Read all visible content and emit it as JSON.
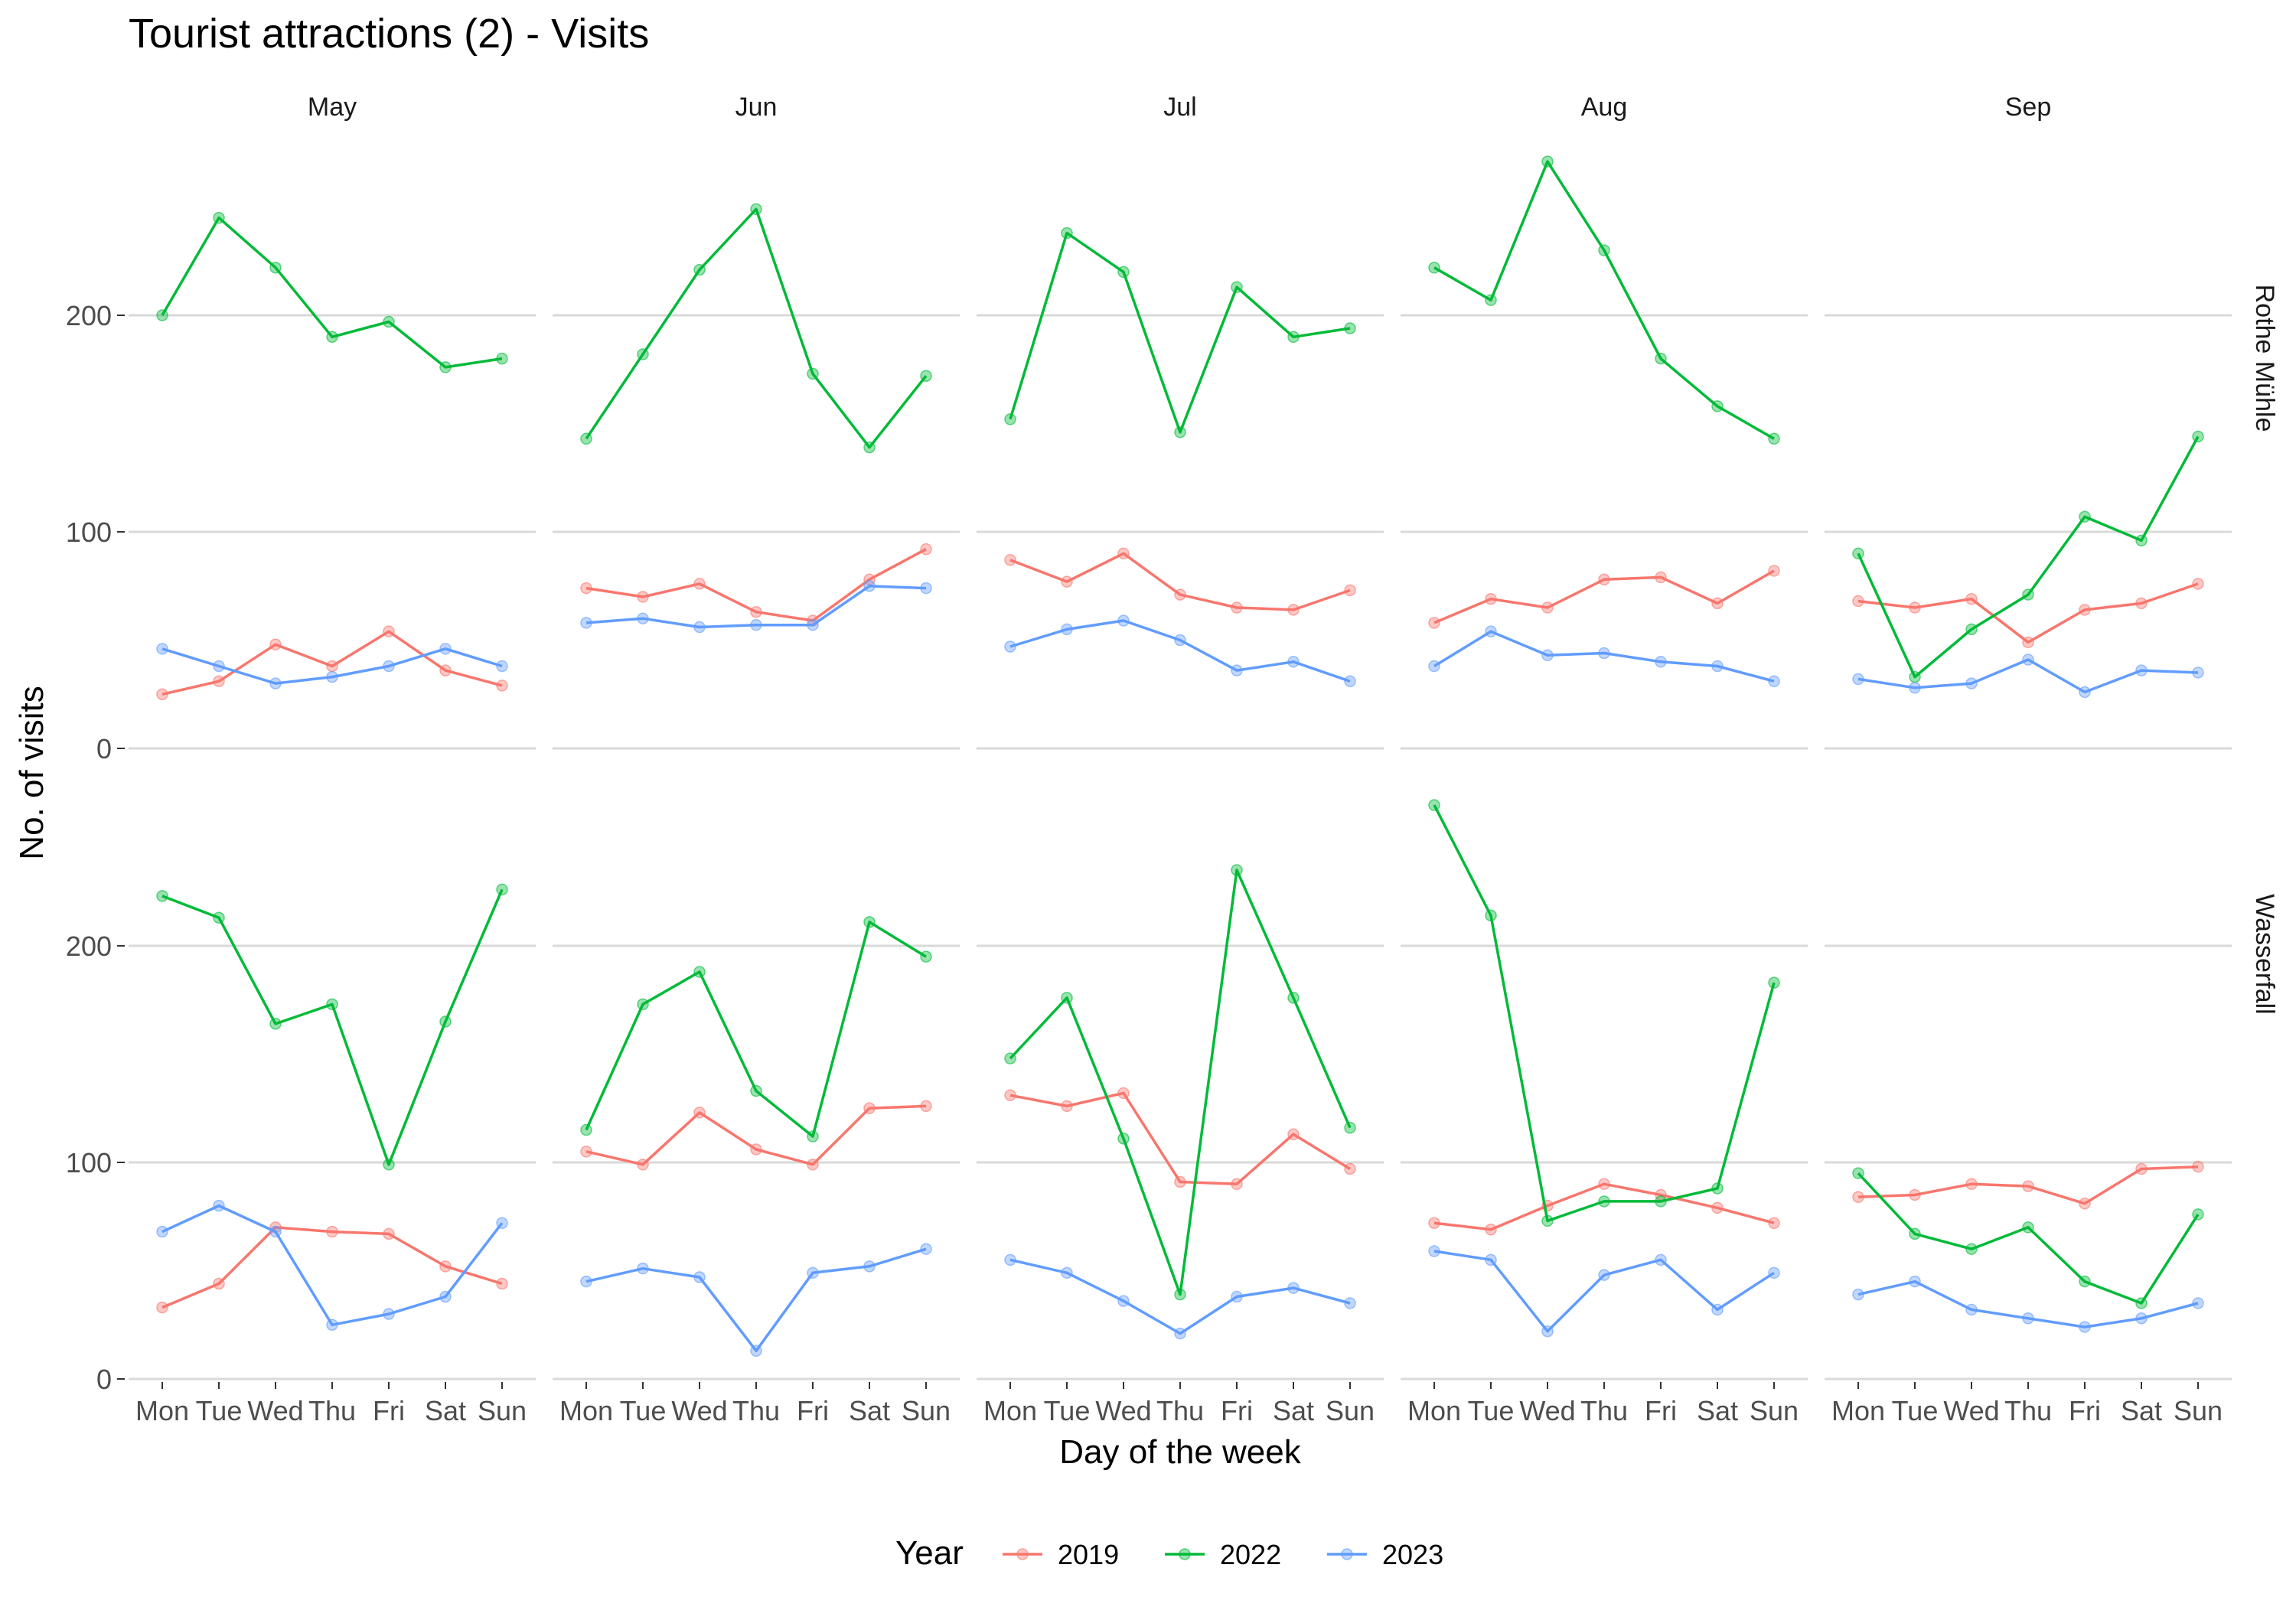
{
  "chart_data": {
    "type": "line",
    "title": "Tourist attractions (2) - Visits",
    "xlabel": "Day of the week",
    "ylabel": "No. of visits",
    "x": [
      "Mon",
      "Tue",
      "Wed",
      "Thu",
      "Fri",
      "Sat",
      "Sun"
    ],
    "y_ticks": [
      0,
      100,
      200
    ],
    "ylim": [
      0,
      275
    ],
    "columns": [
      "May",
      "Jun",
      "Jul",
      "Aug",
      "Sep"
    ],
    "rows": [
      "Rothe Mühle",
      "Wasserfall"
    ],
    "legend": {
      "title": "Year",
      "position": "bottom"
    },
    "grid": "horizontal major",
    "series": [
      {
        "name": "2019",
        "color": "#F8766D"
      },
      {
        "name": "2022",
        "color": "#00BA38"
      },
      {
        "name": "2023",
        "color": "#619CFF"
      }
    ],
    "panels": [
      {
        "row": "Rothe Mühle",
        "column": "May",
        "values": {
          "2019": [
            25,
            31,
            48,
            38,
            54,
            36,
            29
          ],
          "2022": [
            200,
            245,
            222,
            190,
            197,
            176,
            180
          ],
          "2023": [
            46,
            38,
            30,
            33,
            38,
            46,
            38
          ]
        }
      },
      {
        "row": "Rothe Mühle",
        "column": "Jun",
        "values": {
          "2019": [
            74,
            70,
            76,
            63,
            59,
            78,
            92
          ],
          "2022": [
            143,
            182,
            221,
            249,
            173,
            139,
            172
          ],
          "2023": [
            58,
            60,
            56,
            57,
            57,
            75,
            74
          ]
        }
      },
      {
        "row": "Rothe Mühle",
        "column": "Jul",
        "values": {
          "2019": [
            87,
            77,
            90,
            71,
            65,
            64,
            73
          ],
          "2022": [
            152,
            238,
            220,
            146,
            213,
            190,
            194
          ],
          "2023": [
            47,
            55,
            59,
            50,
            36,
            40,
            31
          ]
        }
      },
      {
        "row": "Rothe Mühle",
        "column": "Aug",
        "values": {
          "2019": [
            58,
            69,
            65,
            78,
            79,
            67,
            82
          ],
          "2022": [
            222,
            207,
            271,
            230,
            180,
            158,
            143
          ],
          "2023": [
            38,
            54,
            43,
            44,
            40,
            38,
            31
          ]
        }
      },
      {
        "row": "Rothe Mühle",
        "column": "Sep",
        "values": {
          "2019": [
            68,
            65,
            69,
            49,
            64,
            67,
            76
          ],
          "2022": [
            90,
            33,
            55,
            71,
            107,
            96,
            144
          ],
          "2023": [
            32,
            28,
            30,
            41,
            26,
            36,
            35
          ]
        }
      },
      {
        "row": "Wasserfall",
        "column": "May",
        "values": {
          "2019": [
            33,
            44,
            70,
            68,
            67,
            52,
            44
          ],
          "2022": [
            223,
            213,
            164,
            173,
            99,
            165,
            226
          ],
          "2023": [
            68,
            80,
            68,
            25,
            30,
            38,
            72
          ]
        }
      },
      {
        "row": "Wasserfall",
        "column": "Jun",
        "values": {
          "2019": [
            105,
            99,
            123,
            106,
            99,
            125,
            126
          ],
          "2022": [
            115,
            173,
            188,
            133,
            112,
            211,
            195
          ],
          "2023": [
            45,
            51,
            47,
            13,
            49,
            52,
            60
          ]
        }
      },
      {
        "row": "Wasserfall",
        "column": "Jul",
        "values": {
          "2019": [
            131,
            126,
            132,
            91,
            90,
            113,
            97
          ],
          "2022": [
            148,
            176,
            111,
            39,
            235,
            176,
            116
          ],
          "2023": [
            55,
            49,
            36,
            21,
            38,
            42,
            35
          ]
        }
      },
      {
        "row": "Wasserfall",
        "column": "Aug",
        "values": {
          "2019": [
            72,
            69,
            80,
            90,
            85,
            79,
            72
          ],
          "2022": [
            265,
            214,
            73,
            82,
            82,
            88,
            183
          ],
          "2023": [
            59,
            55,
            22,
            48,
            55,
            32,
            49
          ]
        }
      },
      {
        "row": "Wasserfall",
        "column": "Sep",
        "values": {
          "2019": [
            84,
            85,
            90,
            89,
            81,
            97,
            98
          ],
          "2022": [
            95,
            67,
            60,
            70,
            45,
            35,
            76
          ],
          "2023": [
            39,
            45,
            32,
            28,
            24,
            28,
            35
          ]
        }
      }
    ]
  }
}
